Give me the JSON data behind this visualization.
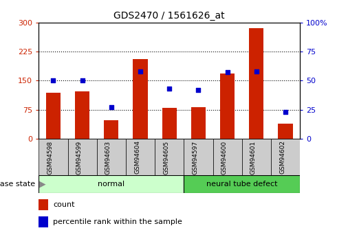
{
  "title": "GDS2470 / 1561626_at",
  "categories": [
    "GSM94598",
    "GSM94599",
    "GSM94603",
    "GSM94604",
    "GSM94605",
    "GSM94597",
    "GSM94600",
    "GSM94601",
    "GSM94602"
  ],
  "count_values": [
    118,
    122,
    48,
    205,
    80,
    82,
    168,
    285,
    38
  ],
  "percentile_values": [
    50,
    50,
    27,
    58,
    43,
    42,
    57,
    58,
    23
  ],
  "bar_color": "#cc2200",
  "dot_color": "#0000cc",
  "left_ylim": [
    0,
    300
  ],
  "right_ylim": [
    0,
    100
  ],
  "left_yticks": [
    0,
    75,
    150,
    225,
    300
  ],
  "right_yticks": [
    0,
    25,
    50,
    75,
    100
  ],
  "left_yticklabels": [
    "0",
    "75",
    "150",
    "225",
    "300"
  ],
  "right_yticklabels": [
    "0",
    "25",
    "50",
    "75",
    "100%"
  ],
  "grid_values": [
    75,
    150,
    225
  ],
  "disease_label": "disease state",
  "legend_count": "count",
  "legend_percentile": "percentile rank within the sample",
  "group_data": [
    {
      "start": 0,
      "end": 5,
      "label": "normal",
      "color": "#ccffcc"
    },
    {
      "start": 5,
      "end": 9,
      "label": "neural tube defect",
      "color": "#55cc55"
    }
  ],
  "xtick_bg_color": "#cccccc",
  "plot_bg_color": "#ffffff"
}
